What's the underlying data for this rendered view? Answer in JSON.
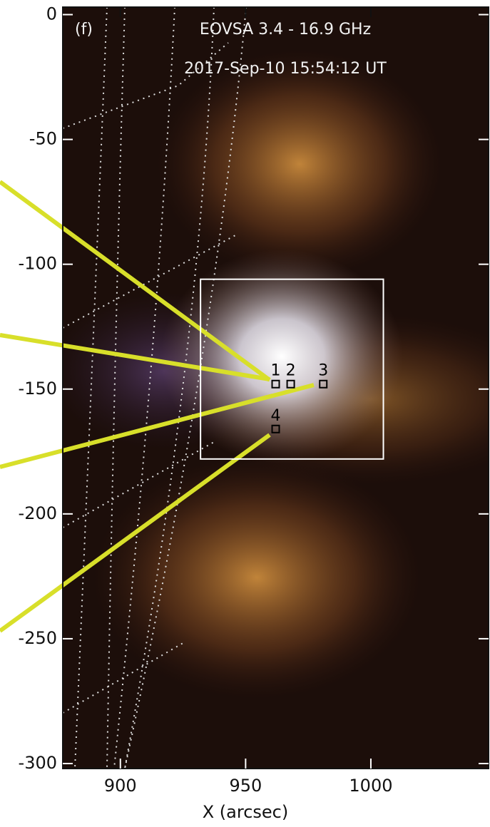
{
  "chart_data": {
    "type": "image",
    "panel_label": "(f)",
    "title": "EOVSA 3.4 - 16.9 GHz",
    "subtitle": "2017-Sep-10  15:54:12 UT",
    "x_label": "X (arcsec)",
    "xlim": [
      877,
      1047
    ],
    "ylim": [
      -302,
      3
    ],
    "xticks": [
      900,
      950,
      1000
    ],
    "yticks": [
      0,
      -50,
      -100,
      -150,
      -200,
      -250,
      -300
    ],
    "region": {
      "x": [
        932,
        1005
      ],
      "y": [
        -178,
        -106
      ]
    },
    "points": {
      "labels": [
        "1",
        "2",
        "3",
        "4"
      ],
      "x": [
        962,
        968,
        981,
        962
      ],
      "y": [
        -148,
        -148,
        -148,
        -166
      ]
    }
  }
}
